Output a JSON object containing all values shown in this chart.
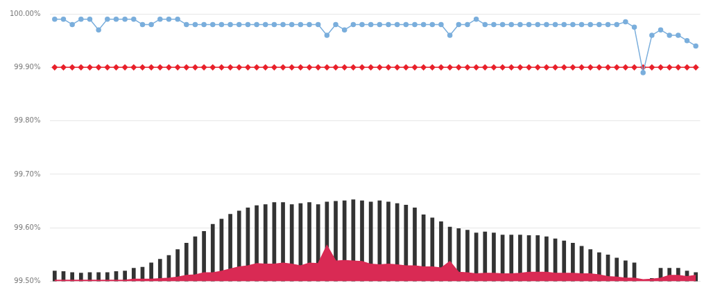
{
  "chart_data": {
    "type": "line",
    "categories": [
      null,
      null,
      null,
      null,
      null,
      null,
      null,
      null,
      null,
      null,
      null,
      null,
      null,
      null,
      null,
      null,
      null,
      null,
      null,
      null,
      null,
      null,
      null,
      null,
      null,
      null,
      null,
      null,
      null,
      null,
      null,
      null,
      null,
      null,
      null,
      null,
      null,
      null,
      null,
      null,
      null,
      null,
      null,
      null,
      null,
      null,
      null,
      null,
      null,
      null,
      null,
      null,
      null,
      null,
      null,
      null,
      null,
      null,
      null,
      null,
      null,
      null,
      null,
      null,
      null,
      null,
      null,
      null,
      null,
      null,
      null,
      null,
      null,
      null
    ],
    "ylim": [
      99.5,
      100
    ],
    "yticks": [
      {
        "value": 99.5,
        "label": "99.50%"
      },
      {
        "value": 99.6,
        "label": "99.60%"
      },
      {
        "value": 99.7,
        "label": "99.70%"
      },
      {
        "value": 99.8,
        "label": "99.80%"
      },
      {
        "value": 99.9,
        "label": "99.90%"
      },
      {
        "value": 100,
        "label": "100.00%"
      }
    ],
    "grid": "y",
    "series": [
      {
        "type": "bar",
        "color": "#333333",
        "values": [
          99.52,
          99.519,
          99.517,
          99.516,
          99.517,
          99.517,
          99.517,
          99.519,
          99.52,
          99.525,
          99.527,
          99.535,
          99.542,
          99.549,
          99.56,
          99.572,
          99.584,
          99.594,
          99.607,
          99.617,
          99.626,
          99.632,
          99.638,
          99.642,
          99.644,
          99.648,
          99.648,
          99.644,
          99.646,
          99.648,
          99.644,
          99.649,
          99.65,
          99.651,
          99.653,
          99.651,
          99.649,
          99.651,
          99.649,
          99.646,
          99.643,
          99.638,
          99.625,
          99.619,
          99.612,
          99.602,
          99.599,
          99.596,
          99.591,
          99.593,
          99.591,
          99.587,
          99.587,
          99.587,
          99.586,
          99.586,
          99.584,
          99.58,
          99.576,
          99.572,
          99.566,
          99.56,
          99.554,
          99.55,
          99.544,
          99.539,
          99.535,
          null,
          99.506,
          99.525,
          99.525,
          99.525,
          99.52,
          99.517
        ]
      },
      {
        "type": "area",
        "color": "#d92a54",
        "values": [
          99.502,
          99.502,
          99.502,
          99.502,
          99.502,
          99.502,
          99.502,
          99.502,
          99.502,
          99.504,
          99.504,
          99.504,
          99.505,
          99.506,
          99.508,
          99.511,
          99.512,
          99.516,
          99.516,
          99.519,
          99.523,
          99.527,
          99.529,
          99.533,
          99.532,
          99.532,
          99.534,
          99.532,
          99.529,
          99.534,
          99.533,
          99.567,
          99.538,
          99.539,
          99.538,
          99.537,
          99.532,
          99.531,
          99.532,
          99.531,
          99.529,
          99.529,
          99.527,
          99.527,
          99.525,
          99.537,
          99.517,
          99.516,
          99.514,
          99.515,
          99.515,
          99.514,
          99.514,
          99.515,
          99.517,
          99.517,
          99.517,
          99.515,
          99.515,
          99.515,
          99.514,
          99.514,
          99.512,
          99.509,
          99.508,
          99.506,
          99.506,
          99.503,
          99.504,
          99.506,
          99.511,
          99.511,
          99.509,
          99.511
        ]
      },
      {
        "color": "#e8202a",
        "marker": "diamond",
        "values": [
          99.9,
          99.9,
          99.9,
          99.9,
          99.9,
          99.9,
          99.9,
          99.9,
          99.9,
          99.9,
          99.9,
          99.9,
          99.9,
          99.9,
          99.9,
          99.9,
          99.9,
          99.9,
          99.9,
          99.9,
          99.9,
          99.9,
          99.9,
          99.9,
          99.9,
          99.9,
          99.9,
          99.9,
          99.9,
          99.9,
          99.9,
          99.9,
          99.9,
          99.9,
          99.9,
          99.9,
          99.9,
          99.9,
          99.9,
          99.9,
          99.9,
          99.9,
          99.9,
          99.9,
          99.9,
          99.9,
          99.9,
          99.9,
          99.9,
          99.9,
          99.9,
          99.9,
          99.9,
          99.9,
          99.9,
          99.9,
          99.9,
          99.9,
          99.9,
          99.9,
          99.9,
          99.9,
          99.9,
          99.9,
          99.9,
          99.9,
          99.9,
          99.9,
          99.9,
          99.9,
          99.9,
          99.9,
          99.9,
          99.9
        ]
      },
      {
        "color": "#7aaedc",
        "marker": "circle",
        "values": [
          99.99,
          99.99,
          99.98,
          99.99,
          99.99,
          99.97,
          99.99,
          99.99,
          99.99,
          99.99,
          99.98,
          99.98,
          99.99,
          99.99,
          99.99,
          99.98,
          99.98,
          99.98,
          99.98,
          99.98,
          99.98,
          99.98,
          99.98,
          99.98,
          99.98,
          99.98,
          99.98,
          99.98,
          99.98,
          99.98,
          99.98,
          99.96,
          99.98,
          99.97,
          99.98,
          99.98,
          99.98,
          99.98,
          99.98,
          99.98,
          99.98,
          99.98,
          99.98,
          99.98,
          99.98,
          99.96,
          99.98,
          99.98,
          99.99,
          99.98,
          99.98,
          99.98,
          99.98,
          99.98,
          99.98,
          99.98,
          99.98,
          99.98,
          99.98,
          99.98,
          99.98,
          99.98,
          99.98,
          99.98,
          99.98,
          99.985,
          99.975,
          99.89,
          99.96,
          99.97,
          99.96,
          99.96,
          99.95,
          99.94
        ]
      }
    ]
  }
}
